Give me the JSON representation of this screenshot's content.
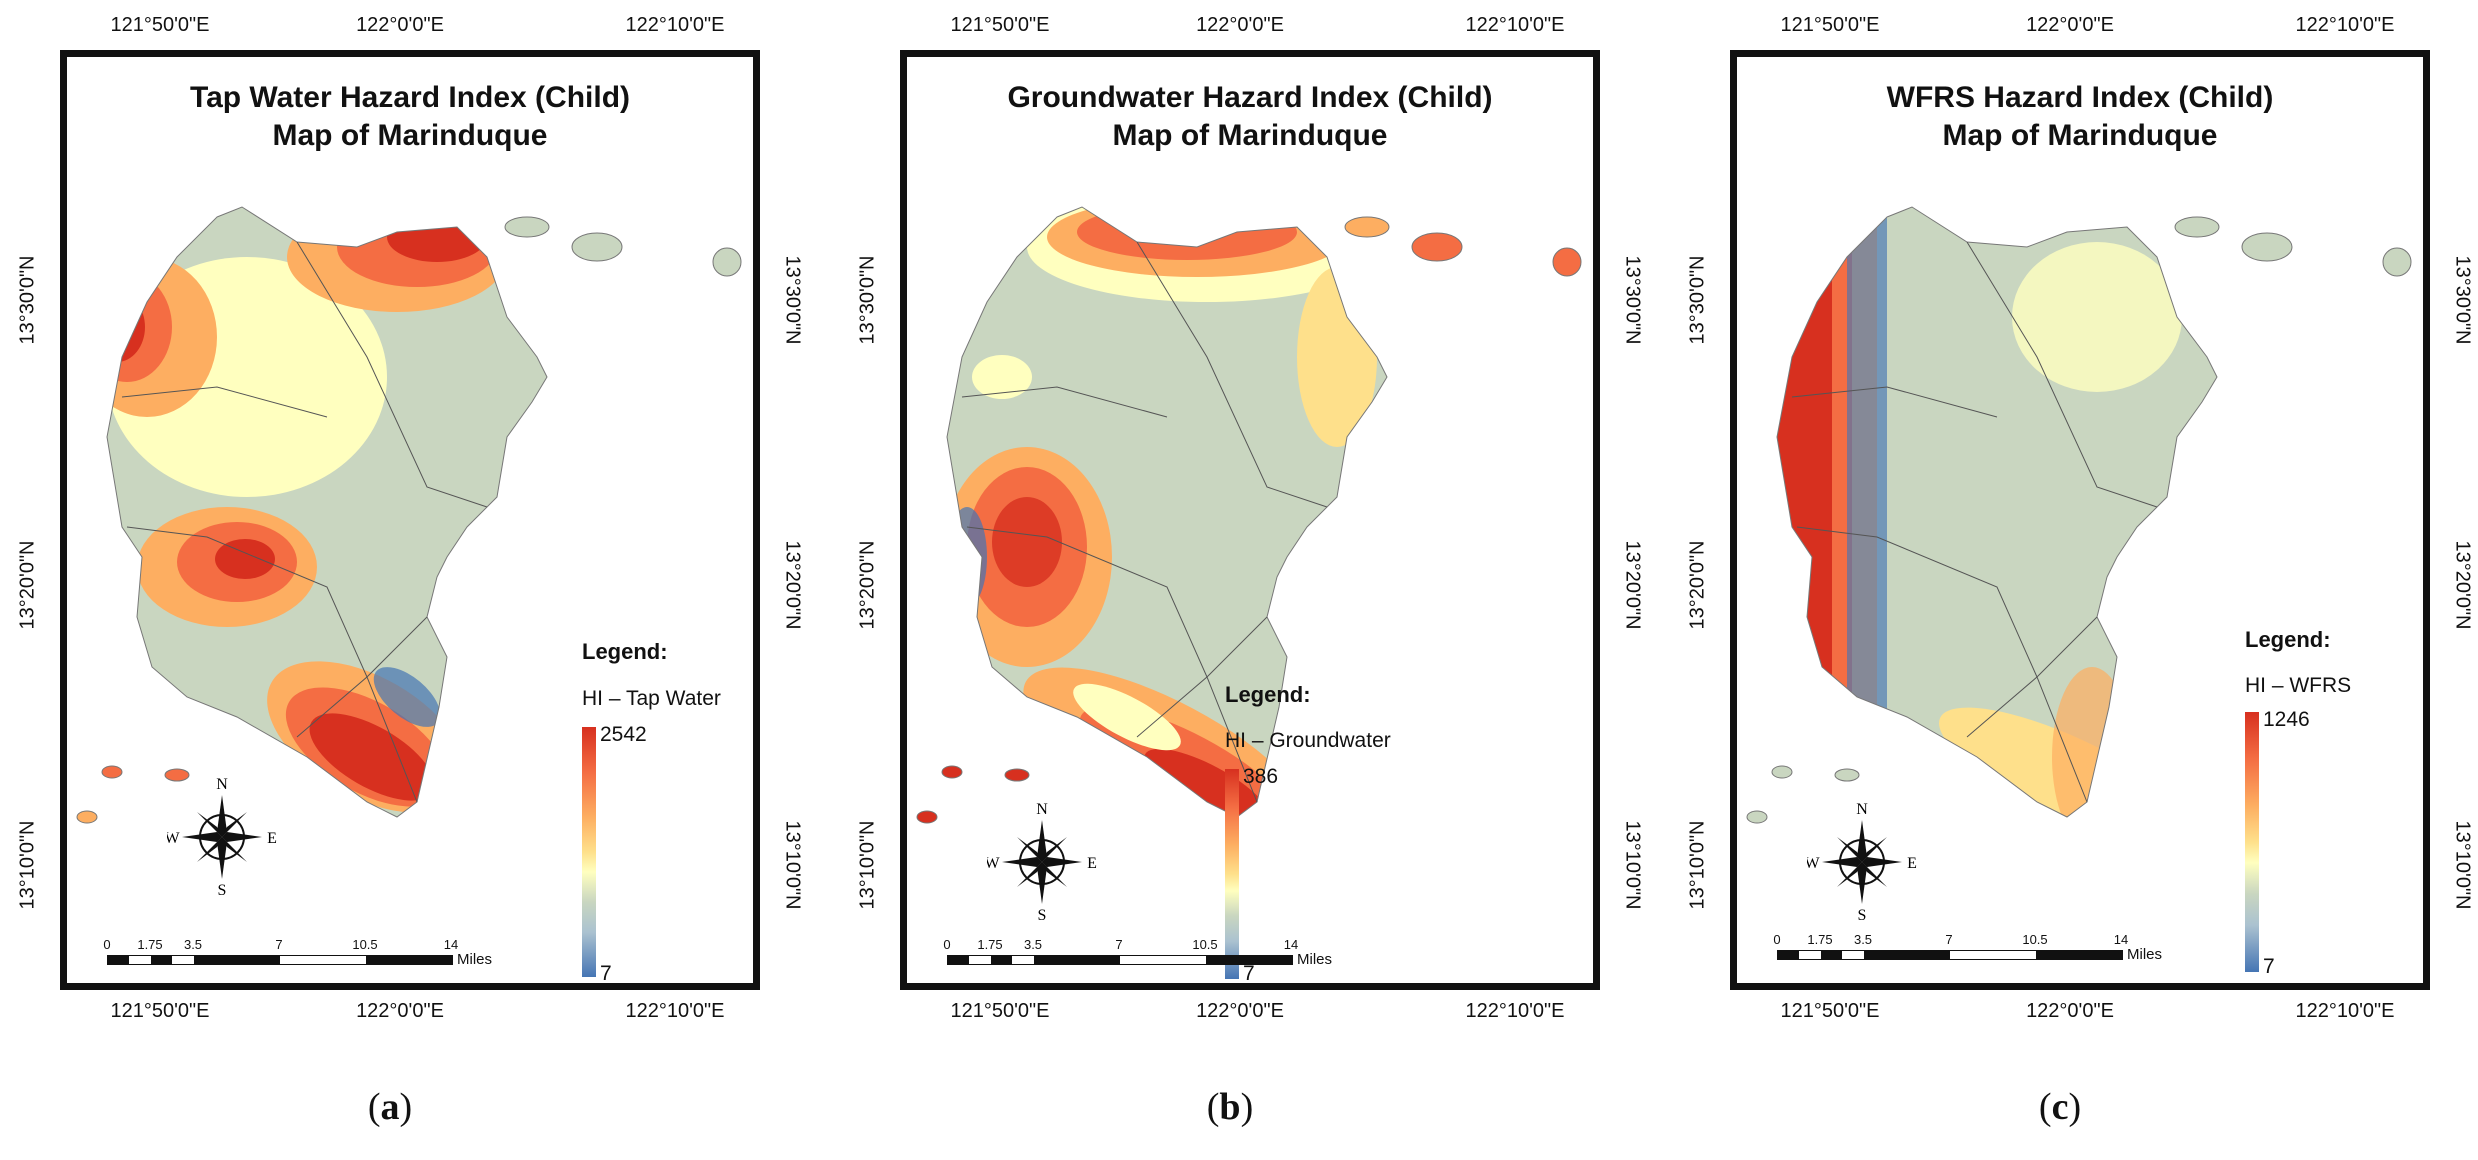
{
  "coordinates": {
    "lon_left": "121°50'0\"E",
    "lon_center": "122°0'0\"E",
    "lon_right": "122°10'0\"E",
    "lat_upper": "13°30'0\"N",
    "lat_middle": "13°20'0\"N",
    "lat_lower": "13°10'0\"N"
  },
  "scale": {
    "ticks": [
      "0",
      "1.75",
      "3.5",
      "7",
      "10.5",
      "14"
    ],
    "units": "Miles"
  },
  "compass": {
    "north": "N",
    "south": "S",
    "east": "E",
    "west": "W"
  },
  "colors": {
    "high": "#d7301f",
    "orange": "#f46d43",
    "light_orange": "#fdae61",
    "yellow": "#fee08b",
    "pale": "#ffffbf",
    "neutral": "#c9d6c0",
    "low": "#4575b4"
  },
  "panels": [
    {
      "title_line1": "Tap Water Hazard Index (Child)",
      "title_line2": "Map of Marinduque",
      "legend_title": "Legend:",
      "legend_label": "HI – Tap Water",
      "legend_max": "2542",
      "legend_min": "7",
      "caption_open": "(",
      "caption_letter": "a",
      "caption_close": ")"
    },
    {
      "title_line1": "Groundwater Hazard Index (Child)",
      "title_line2": "Map of Marinduque",
      "legend_title": "Legend:",
      "legend_label": "HI – Groundwater",
      "legend_max": "386",
      "legend_min": "7",
      "caption_open": "(",
      "caption_letter": "b",
      "caption_close": ")"
    },
    {
      "title_line1": "WFRS Hazard Index (Child)",
      "title_line2": "Map of Marinduque",
      "legend_title": "Legend:",
      "legend_label": "HI – WFRS",
      "legend_max": "1246",
      "legend_min": "7",
      "caption_open": "(",
      "caption_letter": "c",
      "caption_close": ")"
    }
  ]
}
